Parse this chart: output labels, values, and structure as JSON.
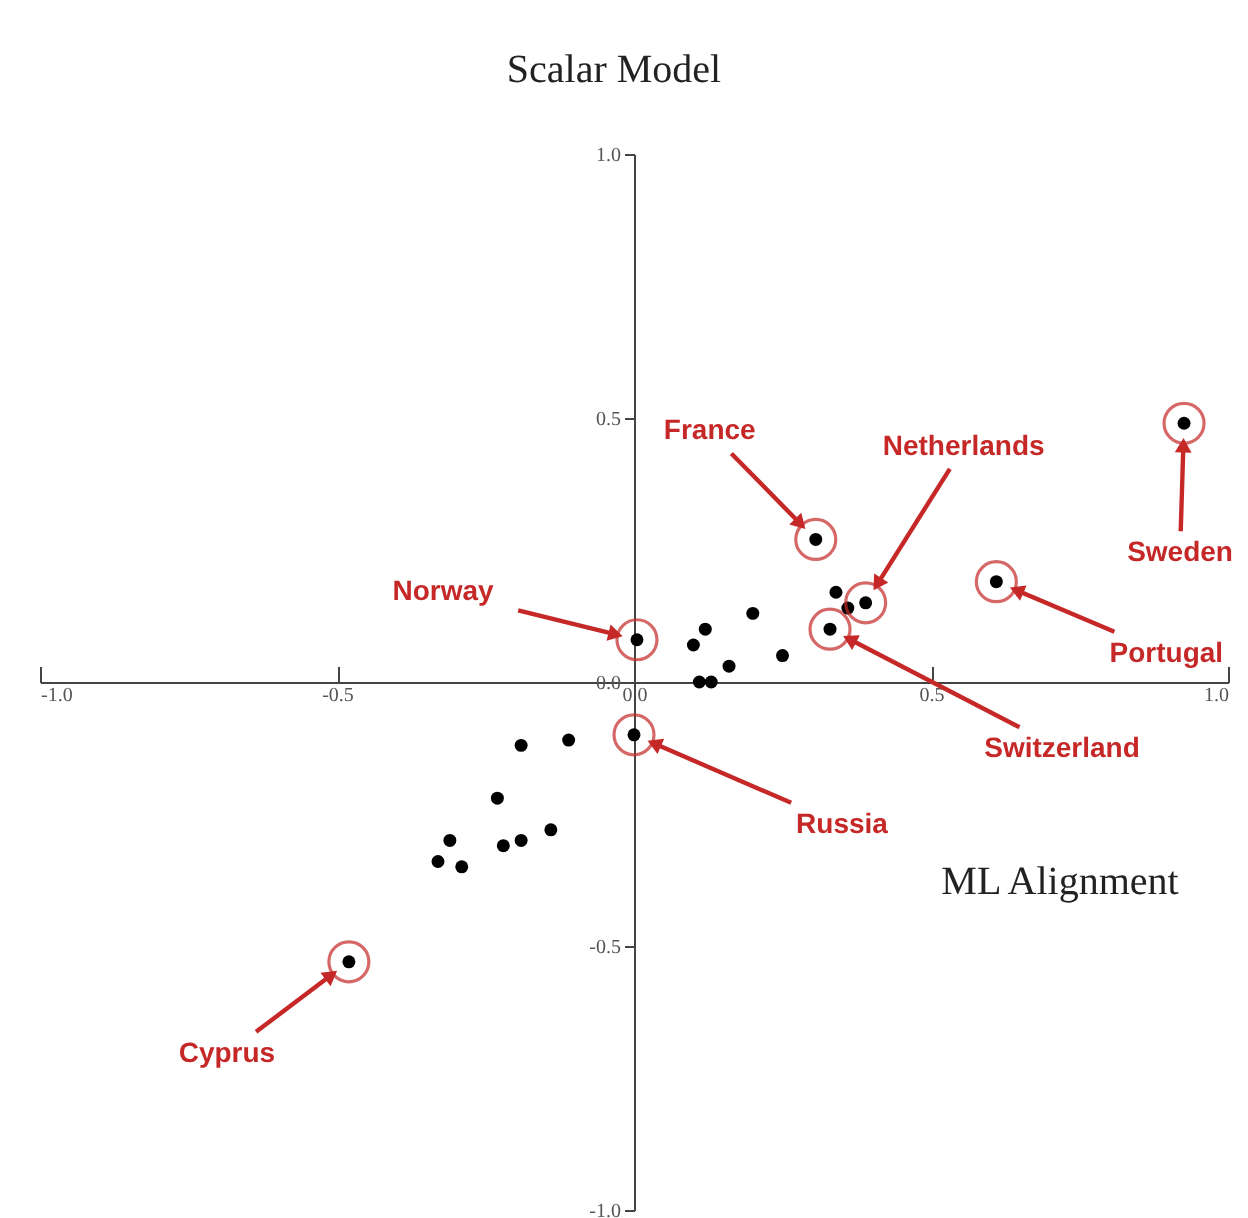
{
  "chart_data": {
    "type": "scatter",
    "xlabel": "ML Alignment",
    "ylabel": "Scalar Model",
    "marker": "circle",
    "x": [
      0.926,
      0.306,
      0.39,
      0.61,
      0.005,
      0.33,
      0.0,
      -0.48,
      0.34,
      0.36,
      0.2,
      0.12,
      0.1,
      0.25,
      0.16,
      0.11,
      0.13,
      -0.11,
      -0.19,
      -0.23,
      -0.31,
      -0.33,
      -0.29,
      -0.22,
      -0.19,
      -0.14
    ],
    "series": [
      {
        "color": "#000000",
        "values": [
          0.49,
          0.27,
          0.15,
          0.19,
          0.08,
          0.1,
          -0.1,
          -0.53,
          0.17,
          0.14,
          0.13,
          0.1,
          0.07,
          0.05,
          0.03,
          0.0,
          0.0,
          -0.11,
          -0.12,
          -0.22,
          -0.3,
          -0.34,
          -0.35,
          -0.31,
          -0.3,
          -0.28
        ]
      }
    ],
    "xlim": [
      -1,
      1
    ],
    "ylim": [
      -1,
      1
    ],
    "xticks": [
      {
        "value": -1,
        "label": "-1.0"
      },
      {
        "value": -0.5,
        "label": "-0.5"
      },
      {
        "value": 0,
        "label": "0.0"
      },
      {
        "value": 0.5,
        "label": "0.5"
      },
      {
        "value": 1,
        "label": "1.0"
      }
    ],
    "yticks": [
      {
        "value": -1,
        "label": "-1.0"
      },
      {
        "value": -0.5,
        "label": "-0.5"
      },
      {
        "value": 0,
        "label": "0.0"
      },
      {
        "value": 0.5,
        "label": "0.5"
      },
      {
        "value": 1,
        "label": "1.0"
      }
    ],
    "grid": false,
    "annotations": [
      "Sweden",
      "France",
      "Netherlands",
      "Portugal",
      "Norway",
      "Switzerland",
      "Russia",
      "Cyprus"
    ]
  }
}
